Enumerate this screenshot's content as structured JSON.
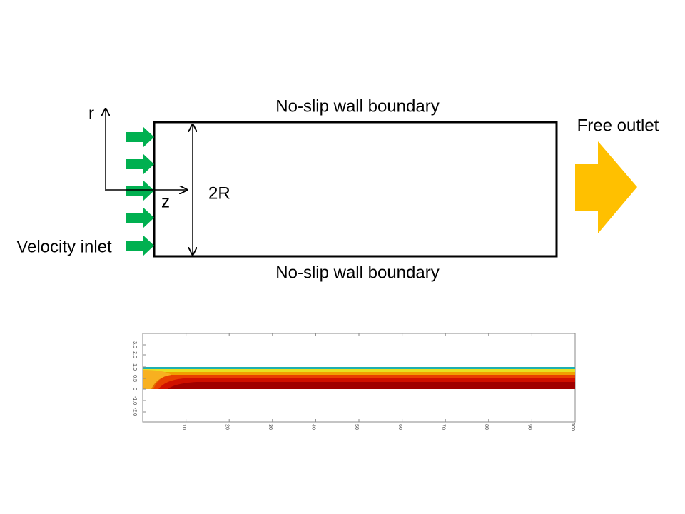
{
  "diagram": {
    "axis_r": "r",
    "axis_z": "z",
    "diameter": "2R",
    "top_wall": "No-slip wall boundary",
    "bottom_wall": "No-slip wall boundary",
    "outlet": "Free outlet",
    "inlet": "Velocity inlet"
  },
  "plot": {
    "xticks": [
      "10",
      "20",
      "30",
      "40",
      "50",
      "60",
      "70",
      "80",
      "90",
      "100"
    ],
    "yticks": [
      "3.0",
      "2.0",
      "1.0",
      "0.5",
      "0",
      "-1.0",
      "-2.0"
    ]
  }
}
